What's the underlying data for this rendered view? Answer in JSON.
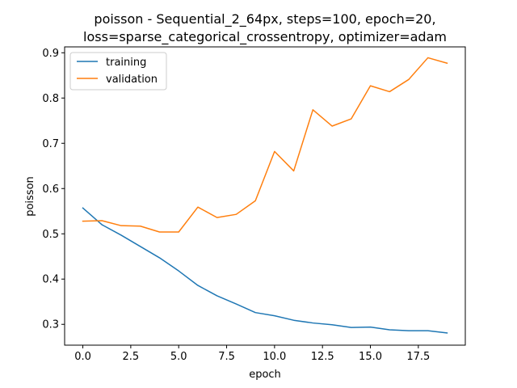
{
  "chart_data": {
    "type": "line",
    "title_lines": [
      "poisson - Sequential_2_64px, steps=100, epoch=20,",
      "loss=sparse_categorical_crossentropy, optimizer=adam"
    ],
    "xlabel": "epoch",
    "ylabel": "poisson",
    "xlim": [
      -0.95,
      19.95
    ],
    "ylim": [
      0.254,
      0.913
    ],
    "x_ticks": [
      0.0,
      2.5,
      5.0,
      7.5,
      10.0,
      12.5,
      15.0,
      17.5
    ],
    "x_tick_labels": [
      "0.0",
      "2.5",
      "5.0",
      "7.5",
      "10.0",
      "12.5",
      "15.0",
      "17.5"
    ],
    "y_ticks": [
      0.3,
      0.4,
      0.5,
      0.6,
      0.7,
      0.8,
      0.9
    ],
    "y_tick_labels": [
      "0.3",
      "0.4",
      "0.5",
      "0.6",
      "0.7",
      "0.8",
      "0.9"
    ],
    "x": [
      0,
      1,
      2,
      3,
      4,
      5,
      6,
      7,
      8,
      9,
      10,
      11,
      12,
      13,
      14,
      15,
      16,
      17,
      18,
      19
    ],
    "legend_position": "upper-left",
    "grid": false,
    "series": [
      {
        "name": "training",
        "color": "#1f77b4",
        "values": [
          0.557,
          0.52,
          0.497,
          0.472,
          0.447,
          0.418,
          0.386,
          0.363,
          0.345,
          0.326,
          0.319,
          0.309,
          0.303,
          0.299,
          0.293,
          0.294,
          0.288,
          0.286,
          0.286,
          0.281
        ]
      },
      {
        "name": "validation",
        "color": "#ff7f0e",
        "values": [
          0.528,
          0.529,
          0.518,
          0.517,
          0.504,
          0.504,
          0.559,
          0.536,
          0.543,
          0.573,
          0.682,
          0.639,
          0.774,
          0.738,
          0.754,
          0.827,
          0.814,
          0.841,
          0.889,
          0.877
        ]
      }
    ]
  }
}
